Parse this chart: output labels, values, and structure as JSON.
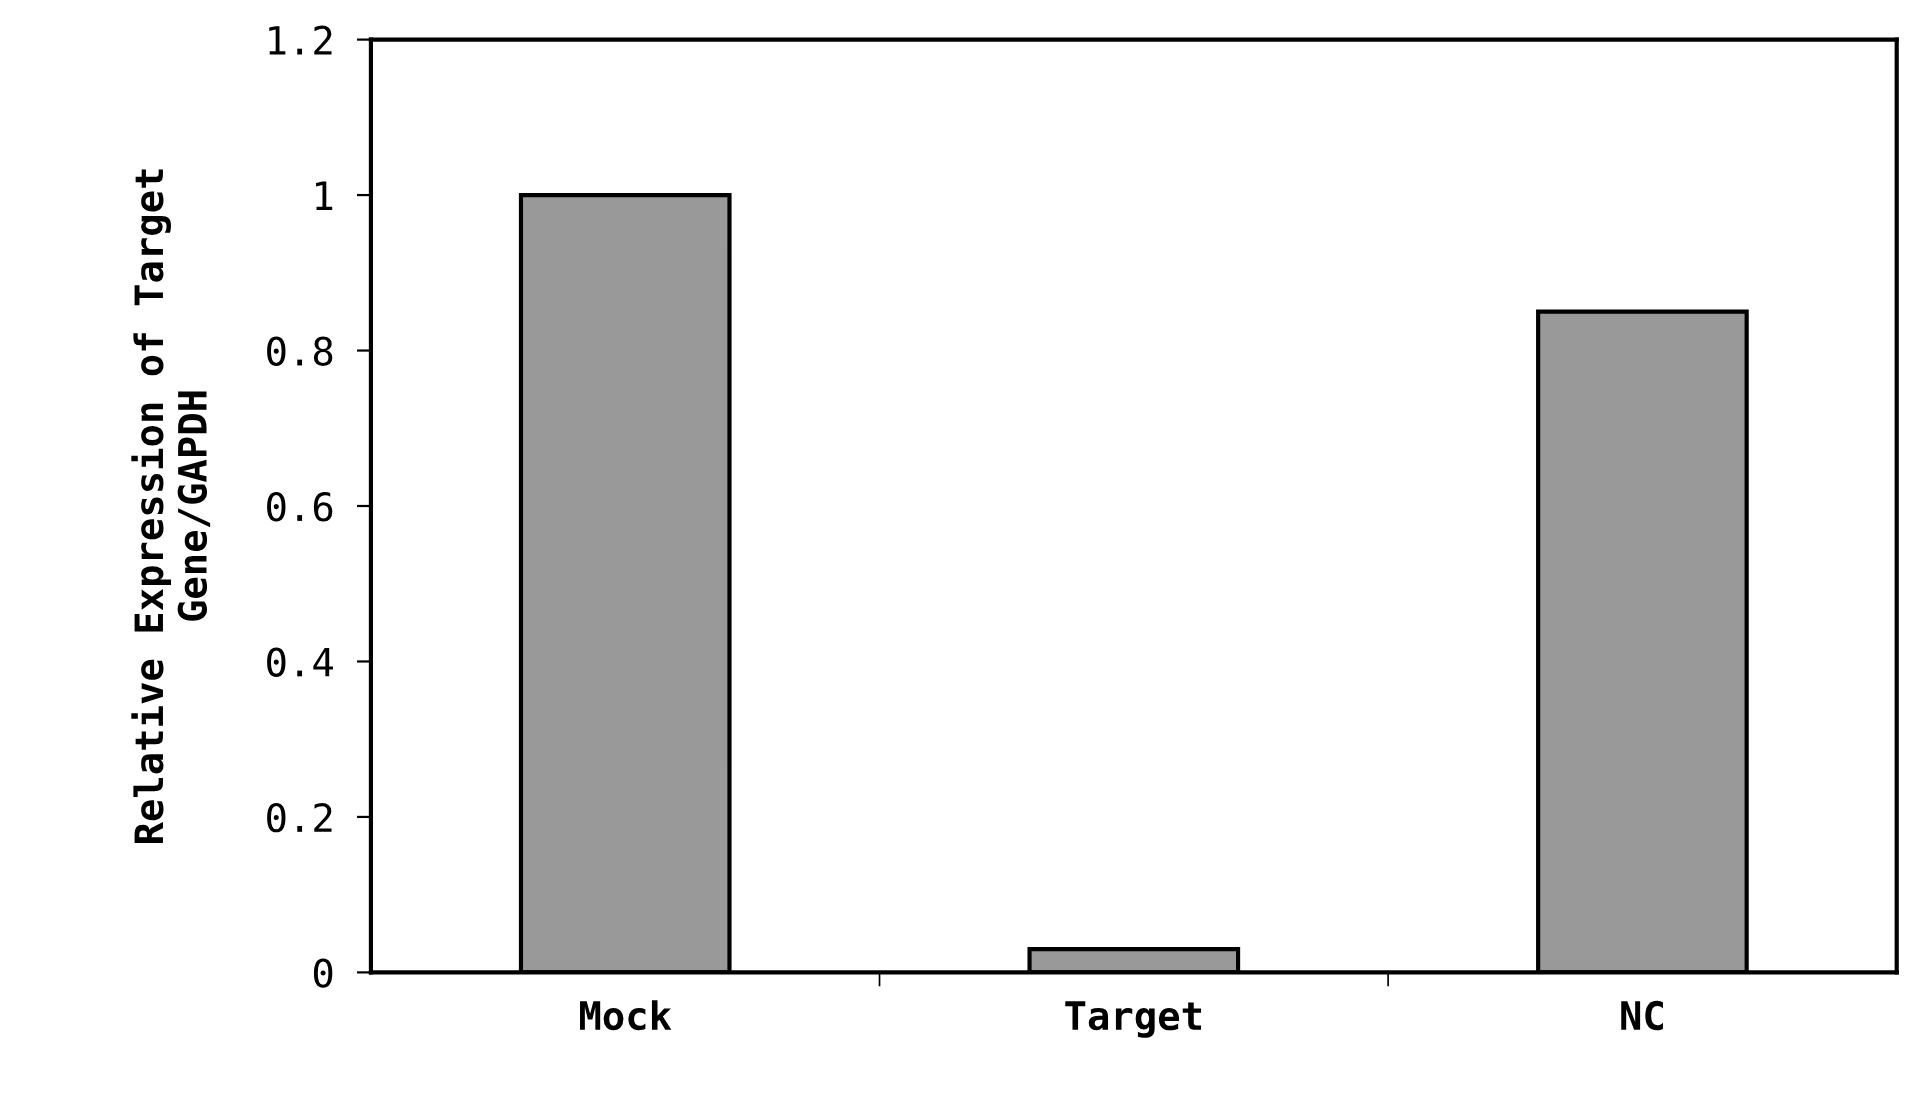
{
  "chart_data": {
    "type": "bar",
    "ylabel": "Relative Expression of Target\nGene/GAPDH",
    "categories": [
      "Mock",
      "Target",
      "NC"
    ],
    "values": [
      1.0,
      0.03,
      0.85
    ],
    "color": "#999999",
    "ylim": [
      0,
      1.2
    ],
    "yticks": [
      0,
      0.2,
      0.4,
      0.6,
      0.8,
      1,
      1.2
    ],
    "grid": false
  }
}
